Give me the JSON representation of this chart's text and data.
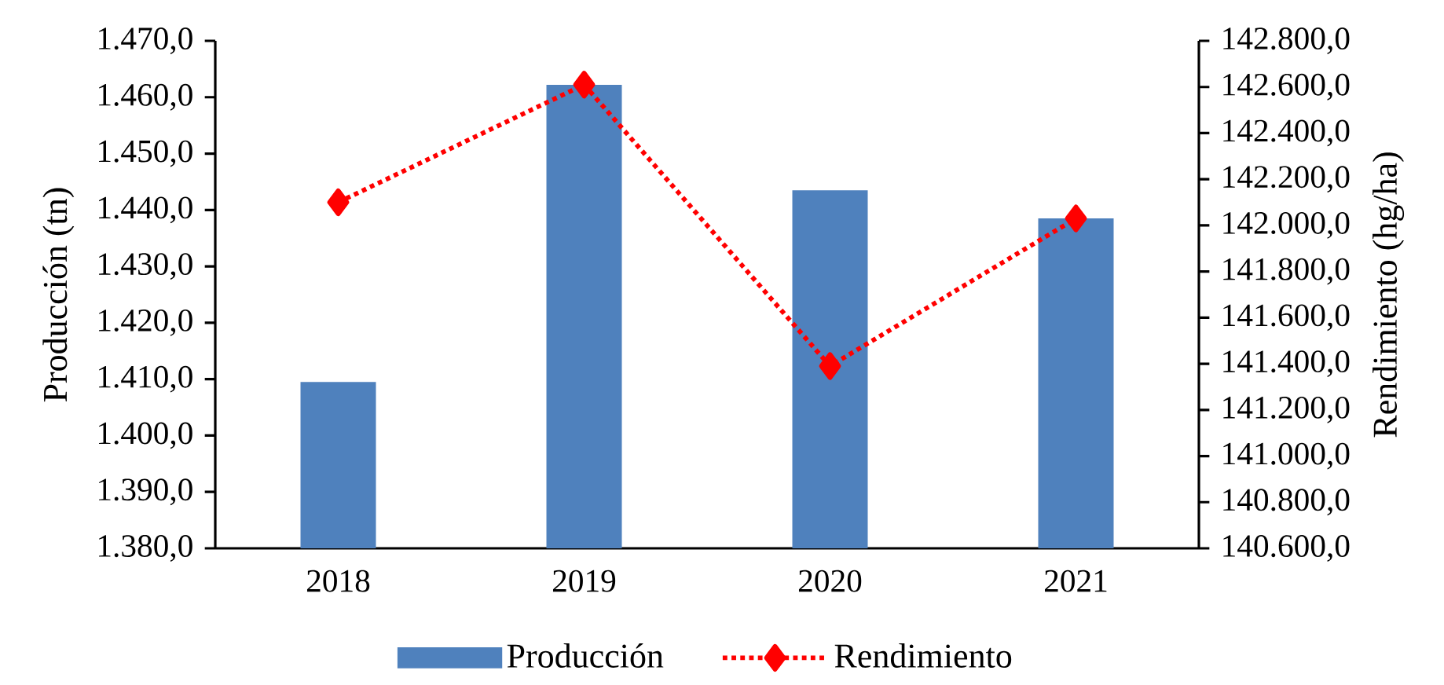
{
  "chart_data": {
    "type": "bar",
    "categories": [
      "2018",
      "2019",
      "2020",
      "2021"
    ],
    "ylabel": "Producción (tn)",
    "y2label": "Rendimiento (hg/ha)",
    "ylim": [
      1380,
      1470
    ],
    "yticks": [
      {
        "value": 1380,
        "label": "1.380,0"
      },
      {
        "value": 1390,
        "label": "1.390,0"
      },
      {
        "value": 1400,
        "label": "1.400,0"
      },
      {
        "value": 1410,
        "label": "1.410,0"
      },
      {
        "value": 1420,
        "label": "1.420,0"
      },
      {
        "value": 1430,
        "label": "1.430,0"
      },
      {
        "value": 1440,
        "label": "1.440,0"
      },
      {
        "value": 1450,
        "label": "1.450,0"
      },
      {
        "value": 1460,
        "label": "1.460,0"
      },
      {
        "value": 1470,
        "label": "1.470,0"
      }
    ],
    "y2lim": [
      140600,
      142800
    ],
    "y2ticks": [
      {
        "value": 140600,
        "label": "140.600,0"
      },
      {
        "value": 140800,
        "label": "140.800,0"
      },
      {
        "value": 141000,
        "label": "141.000,0"
      },
      {
        "value": 141200,
        "label": "141.200,0"
      },
      {
        "value": 141400,
        "label": "141.400,0"
      },
      {
        "value": 141600,
        "label": "141.600,0"
      },
      {
        "value": 141800,
        "label": "141.800,0"
      },
      {
        "value": 142000,
        "label": "142.000,0"
      },
      {
        "value": 142200,
        "label": "142.200,0"
      },
      {
        "value": 142400,
        "label": "142.400,0"
      },
      {
        "value": 142600,
        "label": "142.600,0"
      },
      {
        "value": 142800,
        "label": "142.800,0"
      }
    ],
    "legend": "bottom",
    "series": [
      {
        "name": "Producción",
        "color": "#4f81bd",
        "values": [
          1409.5,
          1462.2,
          1443.5,
          1438.5
        ]
      },
      {
        "name": "Rendimiento",
        "type": "line",
        "axis": "y2",
        "color": "#ff0000",
        "marker": "diamond",
        "line_style": "dotted",
        "values": [
          142100,
          142610,
          141390,
          142030
        ]
      }
    ]
  }
}
